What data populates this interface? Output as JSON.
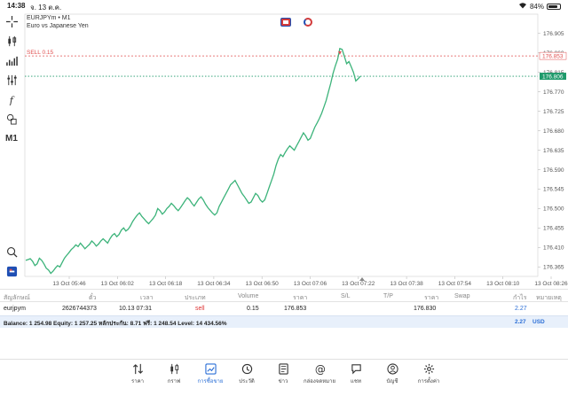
{
  "status": {
    "time": "14:38",
    "date": "จ. 13 ต.ค.",
    "battery": "84%",
    "battery_level": 0.84
  },
  "toolbar": {
    "period": "M1"
  },
  "chart": {
    "symbol": "EURJPYm • M1",
    "description": "Euro vs Japanese Yen",
    "sell_label": "SELL 0.15",
    "colors": {
      "line": "#3cb37a",
      "sell": "#e05050",
      "current": "#1f9a6b",
      "grid": "#e6e6e6"
    }
  },
  "chart_data": {
    "type": "line",
    "price_axis": [
      "176.905",
      "176.860",
      "176.815",
      "176.770",
      "176.725",
      "176.680",
      "176.635",
      "176.590",
      "176.545",
      "176.500",
      "176.455",
      "176.410",
      "176.365"
    ],
    "time_axis": [
      "13 Oct 05:46",
      "13 Oct 06:02",
      "13 Oct 06:18",
      "13 Oct 06:34",
      "13 Oct 06:50",
      "13 Oct 07:06",
      "13 Oct 07:22",
      "13 Oct 07:38",
      "13 Oct 07:54",
      "13 Oct 08:10",
      "13 Oct 08:26"
    ],
    "ylim": [
      176.343,
      176.925
    ],
    "sell_price": "176.853",
    "sell_price_value": 176.853,
    "current_price": "176.806",
    "current_price_value": 176.806,
    "series": [
      {
        "values": [
          176.38,
          176.382,
          176.384,
          176.378,
          176.368,
          176.372,
          176.385,
          176.38,
          176.372,
          176.362,
          176.358,
          176.35,
          176.355,
          176.362,
          176.368,
          176.365,
          176.375,
          176.385,
          176.392,
          176.398,
          176.405,
          176.41,
          176.416,
          176.412,
          176.42,
          176.414,
          176.407,
          176.412,
          176.417,
          176.425,
          176.42,
          176.413,
          176.418,
          176.425,
          176.43,
          176.425,
          176.42,
          176.43,
          176.438,
          176.442,
          176.435,
          176.44,
          176.45,
          176.455,
          176.448,
          176.452,
          176.46,
          176.47,
          176.478,
          176.485,
          176.49,
          176.482,
          176.476,
          176.47,
          176.465,
          176.471,
          176.477,
          176.485,
          176.5,
          176.495,
          176.487,
          176.492,
          176.5,
          176.505,
          176.512,
          176.507,
          176.5,
          176.495,
          176.502,
          176.51,
          176.518,
          176.525,
          176.52,
          176.512,
          176.506,
          176.514,
          176.522,
          176.527,
          176.52,
          176.51,
          176.502,
          176.496,
          176.49,
          176.485,
          176.49,
          176.505,
          176.515,
          176.525,
          176.535,
          176.545,
          176.555,
          176.56,
          176.565,
          176.555,
          176.545,
          176.535,
          176.528,
          176.52,
          176.512,
          176.515,
          176.525,
          176.535,
          176.53,
          176.52,
          176.515,
          176.52,
          176.535,
          176.55,
          176.565,
          176.58,
          176.6,
          176.615,
          176.625,
          176.62,
          176.63,
          176.638,
          176.645,
          176.64,
          176.635,
          176.645,
          176.655,
          176.665,
          176.675,
          176.668,
          176.658,
          176.662,
          176.675,
          176.688,
          176.698,
          176.708,
          176.72,
          176.735,
          176.75,
          176.77,
          176.79,
          176.812,
          176.83,
          176.845,
          176.87,
          176.868,
          176.852,
          176.835,
          176.84,
          176.828,
          176.815,
          176.795,
          176.8,
          176.806
        ]
      }
    ]
  },
  "table": {
    "headers": [
      "สัญลักษณ์",
      "ตั๋ว",
      "เวลา",
      "ประเภท",
      "Volume",
      "ราคา",
      "S/L",
      "T/P",
      "ราคา",
      "Swap",
      "กำไร",
      "หมายเหตุ"
    ],
    "row": {
      "symbol": "eurjpym",
      "ticket": "2626744373",
      "time": "10.13 07:31",
      "type": "sell",
      "volume": "0.15",
      "open_price": "176.853",
      "sl": "",
      "tp": "",
      "price": "176.830",
      "swap": "",
      "profit": "2.27",
      "comment": ""
    },
    "balance": {
      "text": "Balance: 1 254.98 Equity: 1 257.25 หลักประกัน: 8.71 ฟรี: 1 248.54 Level: 14 434.56%",
      "profit": "2.27",
      "currency": "USD"
    }
  },
  "nav": {
    "items": [
      {
        "label": "ราคา",
        "icon": "quotes-icon"
      },
      {
        "label": "กราฟ",
        "icon": "candles-icon"
      },
      {
        "label": "การซื้อขาย",
        "icon": "trade-chart-icon"
      },
      {
        "label": "ประวัติ",
        "icon": "history-icon"
      },
      {
        "label": "ข่าว",
        "icon": "news-icon"
      },
      {
        "label": "กล่องจดหมาย",
        "icon": "mail-at-icon"
      },
      {
        "label": "แชท",
        "icon": "chat-icon"
      },
      {
        "label": "บัญชี",
        "icon": "account-icon"
      },
      {
        "label": "การตั้งค่า",
        "icon": "settings-gear-icon"
      }
    ],
    "active_index": 2
  }
}
